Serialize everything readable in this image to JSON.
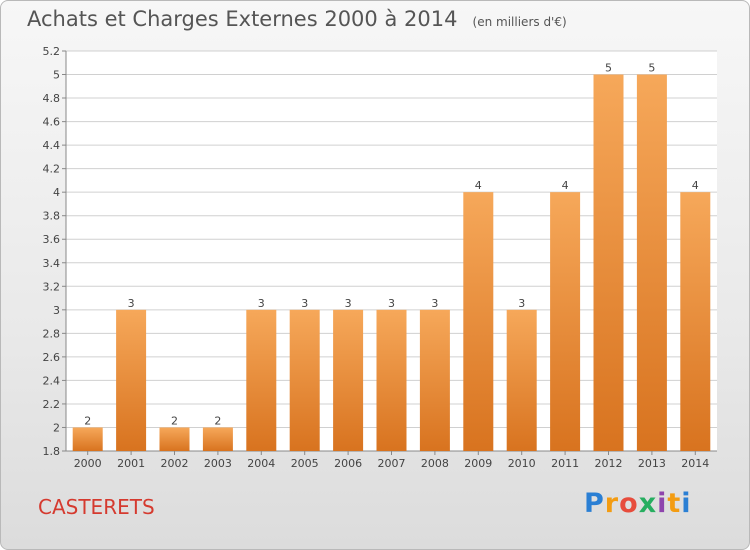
{
  "header": {
    "title": "Achats et Charges Externes 2000 à 2014",
    "unit": "(en milliers d'€)"
  },
  "commune": "CASTERETS",
  "logo": {
    "letters": [
      "P",
      "r",
      "o",
      "x",
      "i",
      "t",
      "i"
    ],
    "colors": [
      "#2a7fd4",
      "#f39c12",
      "#e74c3c",
      "#27ae60",
      "#8e44ad",
      "#f39c12",
      "#2a7fd4"
    ]
  },
  "colors": {
    "bar": "#ef8c34",
    "bar_light": "#f6a85a",
    "bar_dark": "#d8731f",
    "grid": "#d0d0d0",
    "commune": "#d53a2f"
  },
  "chart_data": {
    "type": "bar",
    "title": "Achats et Charges Externes 2000 à 2014",
    "subtitle": "(en milliers d'€)",
    "categories": [
      "2000",
      "2001",
      "2002",
      "2003",
      "2004",
      "2005",
      "2006",
      "2007",
      "2008",
      "2009",
      "2010",
      "2011",
      "2012",
      "2013",
      "2014"
    ],
    "values": [
      2,
      3,
      2,
      2,
      3,
      3,
      3,
      3,
      3,
      4,
      3,
      4,
      5,
      5,
      4
    ],
    "plotted_values": [
      2.0,
      3.0,
      2.0,
      2.0,
      3.0,
      3.0,
      3.0,
      3.0,
      3.0,
      4.0,
      3.0,
      4.0,
      5.0,
      5.0,
      4.0
    ],
    "yticks": [
      "1.8",
      "2",
      "2.2",
      "2.4",
      "2.6",
      "2.8",
      "3",
      "3.2",
      "3.4",
      "3.6",
      "3.8",
      "4",
      "4.2",
      "4.4",
      "4.6",
      "4.8",
      "5",
      "5.2"
    ],
    "ylim": [
      1.8,
      5.2
    ],
    "grid": true,
    "legend": "none"
  }
}
